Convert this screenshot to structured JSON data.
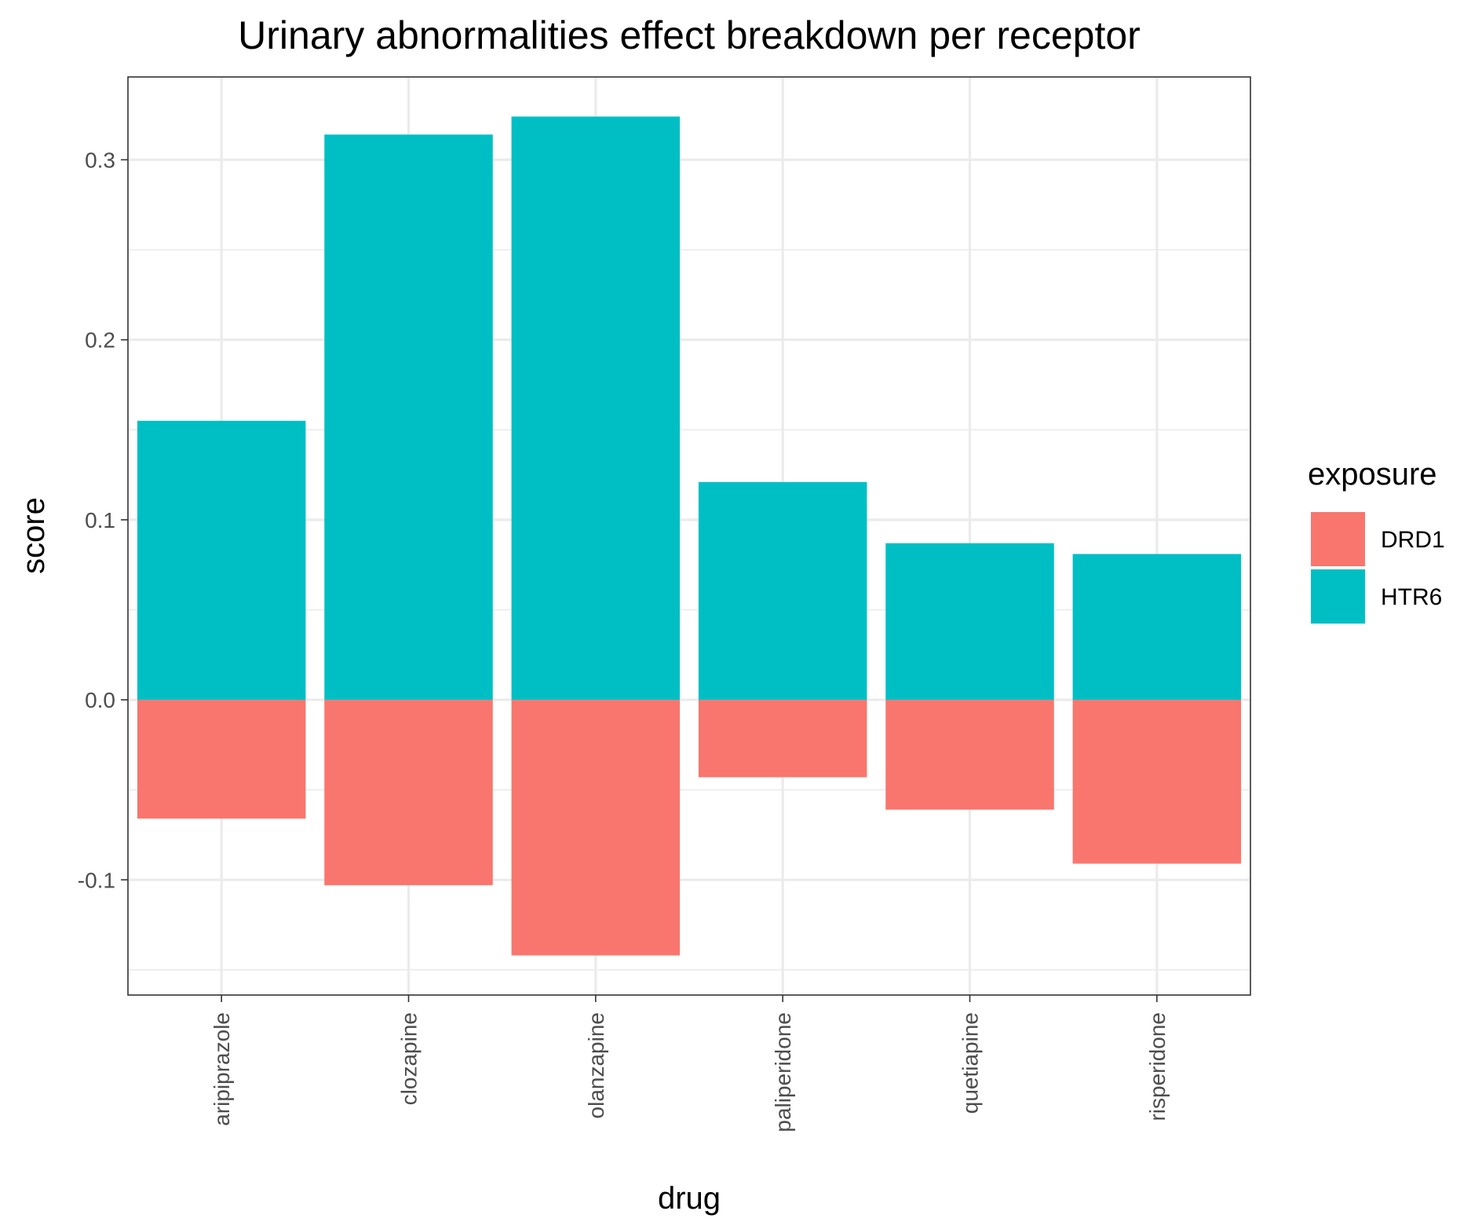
{
  "chart_data": {
    "type": "bar",
    "stacked": true,
    "title": "Urinary abnormalities effect breakdown per receptor",
    "xlabel": "drug",
    "ylabel": "score",
    "categories": [
      "aripiprazole",
      "clozapine",
      "olanzapine",
      "paliperidone",
      "quetiapine",
      "risperidone"
    ],
    "series": [
      {
        "name": "DRD1",
        "color": "#F8766D",
        "values": [
          -0.066,
          -0.103,
          -0.142,
          -0.043,
          -0.061,
          -0.091
        ]
      },
      {
        "name": "HTR6",
        "color": "#00BFC4",
        "values": [
          0.155,
          0.314,
          0.324,
          0.121,
          0.087,
          0.081
        ]
      }
    ],
    "ylim": [
      -0.164,
      0.346
    ],
    "yticks": [
      -0.1,
      0.0,
      0.1,
      0.2,
      0.3
    ],
    "ytick_labels": [
      "-0.1",
      "0.0",
      "0.1",
      "0.2",
      "0.3"
    ],
    "grid": true,
    "legend": {
      "title": "exposure",
      "position": "right"
    }
  }
}
